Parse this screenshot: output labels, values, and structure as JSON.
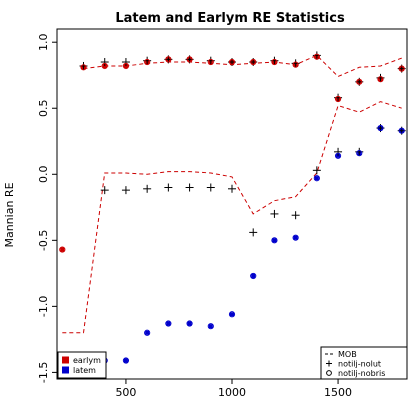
{
  "chart_data": {
    "type": "scatter",
    "title": "Latem and Earlym RE Statistics",
    "xlabel": "",
    "ylabel": "Mannian RE",
    "xlim": [
      175,
      1825
    ],
    "ylim": [
      -1.55,
      1.1
    ],
    "x_ticks": [
      500,
      1000,
      1500
    ],
    "y_ticks": [
      -1.5,
      -1.0,
      -0.5,
      0.0,
      0.5,
      1.0
    ],
    "x_tick_labels": [
      "500",
      "1000",
      "1500"
    ],
    "y_tick_labels": [
      "-1.5",
      "-1.0",
      "-0.5",
      "0.0",
      "0.5",
      "1.0"
    ],
    "grid": false,
    "series": [
      {
        "name": "MOB",
        "kind": "dashed-line",
        "color": "#cc0000",
        "segments": [
          {
            "x": [
              200,
              300,
              400,
              500,
              600,
              700,
              800,
              900,
              1000,
              1100,
              1200,
              1300,
              1400,
              1500,
              1600,
              1700,
              1800
            ],
            "y": [
              -1.2,
              -1.2,
              0.01,
              0.01,
              0.0,
              0.02,
              0.02,
              0.01,
              -0.02,
              -0.3,
              -0.2,
              -0.17,
              0.01,
              0.52,
              0.47,
              0.55,
              0.5
            ]
          },
          {
            "x": [
              300,
              400,
              500,
              600,
              700,
              800,
              900,
              1000,
              1100,
              1200,
              1300,
              1400,
              1500,
              1600,
              1700,
              1800
            ],
            "y": [
              0.8,
              0.82,
              0.82,
              0.84,
              0.85,
              0.85,
              0.84,
              0.83,
              0.84,
              0.85,
              0.83,
              0.9,
              0.74,
              0.81,
              0.82,
              0.88
            ]
          }
        ]
      },
      {
        "name": "earlym",
        "marker": "point",
        "color": "#cc0000",
        "x": [
          200,
          300,
          400,
          500,
          600,
          700,
          800,
          900,
          1000,
          1100,
          1200,
          1300,
          1400,
          1500,
          1600,
          1700,
          1800
        ],
        "y": [
          -0.57,
          0.81,
          0.82,
          0.82,
          0.85,
          0.87,
          0.87,
          0.85,
          0.85,
          0.85,
          0.85,
          0.83,
          0.89,
          0.57,
          0.7,
          0.72,
          0.8
        ]
      },
      {
        "name": "latem",
        "marker": "point",
        "color": "#0000cc",
        "x": [
          400,
          500,
          600,
          700,
          800,
          900,
          1000,
          1100,
          1200,
          1300,
          1400,
          1500,
          1600,
          1700,
          1800
        ],
        "y": [
          -1.41,
          -1.41,
          -1.2,
          -1.13,
          -1.13,
          -1.15,
          -1.06,
          -0.77,
          -0.5,
          -0.48,
          -0.03,
          0.14,
          0.16,
          0.35,
          0.33
        ]
      },
      {
        "name": "notilj-nolut",
        "marker": "plus",
        "color": "#000000",
        "x": [
          300,
          400,
          500,
          600,
          700,
          800,
          900,
          1000,
          1100,
          1200,
          1300,
          1400,
          1500,
          1600,
          1700,
          1800
        ],
        "y": [
          0.82,
          0.85,
          0.85,
          0.86,
          0.87,
          0.87,
          0.86,
          0.85,
          0.85,
          0.86,
          0.84,
          0.9,
          0.58,
          0.7,
          0.73,
          0.8
        ]
      },
      {
        "name": "notilj-nolut-lower",
        "marker": "plus",
        "color": "#000000",
        "x": [
          400,
          500,
          600,
          700,
          800,
          900,
          1000,
          1100,
          1200,
          1300,
          1400,
          1500,
          1600,
          1700,
          1800
        ],
        "y": [
          -0.12,
          -0.12,
          -0.11,
          -0.1,
          -0.1,
          -0.1,
          -0.11,
          -0.44,
          -0.3,
          -0.31,
          0.03,
          0.17,
          0.17,
          0.35,
          0.33
        ]
      },
      {
        "name": "notilj-nobris",
        "marker": "circle",
        "color": "#cc0000",
        "x": [
          200,
          300,
          400,
          500,
          600,
          700,
          800,
          900,
          1000,
          1100,
          1200,
          1300,
          1400,
          1500,
          1600,
          1700,
          1800
        ],
        "y": [
          -0.57,
          0.81,
          0.82,
          0.82,
          0.85,
          0.87,
          0.87,
          0.85,
          0.85,
          0.85,
          0.85,
          0.83,
          0.89,
          0.57,
          0.7,
          0.72,
          0.8
        ]
      },
      {
        "name": "notilj-nobris-lower",
        "marker": "circle",
        "color": "#0000cc",
        "x": [
          400,
          500,
          600,
          700,
          800,
          900,
          1000,
          1100,
          1200,
          1300,
          1400,
          1500,
          1600,
          1700,
          1800
        ],
        "y": [
          -1.41,
          -1.41,
          -1.2,
          -1.13,
          -1.13,
          -1.15,
          -1.06,
          -0.77,
          -0.5,
          -0.48,
          -0.03,
          0.14,
          0.16,
          0.35,
          0.33
        ]
      }
    ],
    "legend_left": {
      "placement": "bottom-left",
      "entries": [
        {
          "label": "earlym",
          "color": "#cc0000"
        },
        {
          "label": "latem",
          "color": "#0000cc"
        }
      ]
    },
    "legend_right": {
      "placement": "bottom-right",
      "entries": [
        {
          "label": "MOB",
          "symbol": "dash"
        },
        {
          "label": "notilj-nolut",
          "symbol": "plus"
        },
        {
          "label": "notilj-nobris",
          "symbol": "circle"
        }
      ]
    }
  }
}
